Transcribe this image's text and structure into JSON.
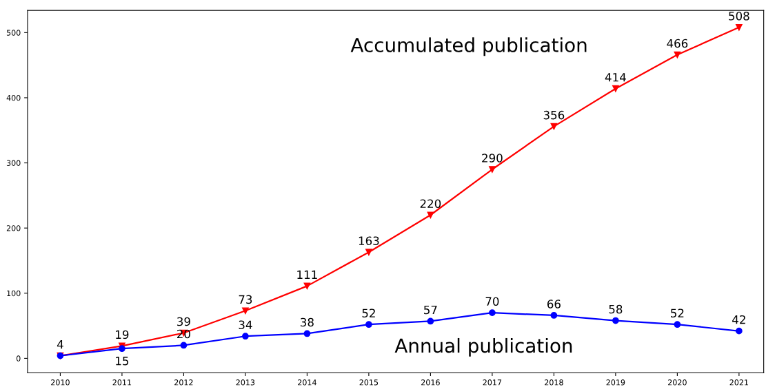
{
  "chart_data": {
    "type": "line",
    "x": [
      2010,
      2011,
      2012,
      2013,
      2014,
      2015,
      2016,
      2017,
      2018,
      2019,
      2020,
      2021
    ],
    "series": [
      {
        "name": "Accumulated publication",
        "color": "#ff0000",
        "marker": "triangle",
        "values": [
          4,
          19,
          39,
          73,
          111,
          163,
          220,
          290,
          356,
          414,
          466,
          508
        ],
        "value_labels": [
          "4",
          "19",
          "39",
          "73",
          "111",
          "163",
          "220",
          "290",
          "356",
          "414",
          "466",
          "508"
        ]
      },
      {
        "name": "Annual publication",
        "color": "#0000ff",
        "marker": "circle",
        "values": [
          4,
          15,
          20,
          34,
          38,
          52,
          57,
          70,
          66,
          58,
          52,
          42
        ],
        "value_labels": [
          null,
          "15",
          "20",
          "34",
          "38",
          "52",
          "57",
          "70",
          "66",
          "58",
          "52",
          "42"
        ]
      }
    ],
    "xlim": [
      2009.47,
      2021.4
    ],
    "xticks": [
      2010,
      2011,
      2012,
      2013,
      2014,
      2015,
      2016,
      2017,
      2018,
      2019,
      2020,
      2021
    ],
    "ylim": [
      -22,
      534
    ],
    "yticks": [
      0,
      100,
      200,
      300,
      400,
      500
    ],
    "line_style": "solid",
    "grid": false,
    "legend": false
  }
}
